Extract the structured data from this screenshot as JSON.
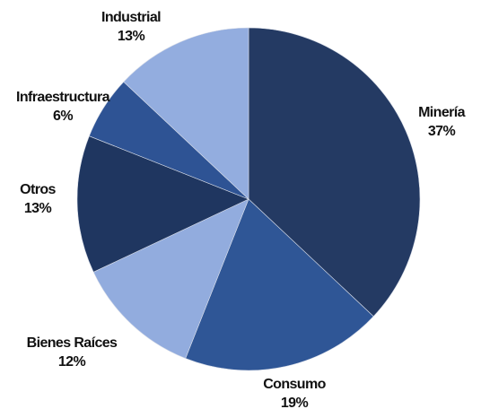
{
  "chart_data": {
    "type": "pie",
    "title": "",
    "legend": "none",
    "slices": [
      {
        "label": "Minería",
        "value": 37,
        "value_label": "37%",
        "color": "#243a63"
      },
      {
        "label": "Consumo",
        "value": 19,
        "value_label": "19%",
        "color": "#2f5696"
      },
      {
        "label": "Bienes Raíces",
        "value": 12,
        "value_label": "12%",
        "color": "#92acde"
      },
      {
        "label": "Otros",
        "value": 13,
        "value_label": "13%",
        "color": "#1f3660"
      },
      {
        "label": "Infraestructura",
        "value": 6,
        "value_label": "6%",
        "color": "#2e5394"
      },
      {
        "label": "Industrial",
        "value": 13,
        "value_label": "13%",
        "color": "#93addf"
      }
    ]
  }
}
